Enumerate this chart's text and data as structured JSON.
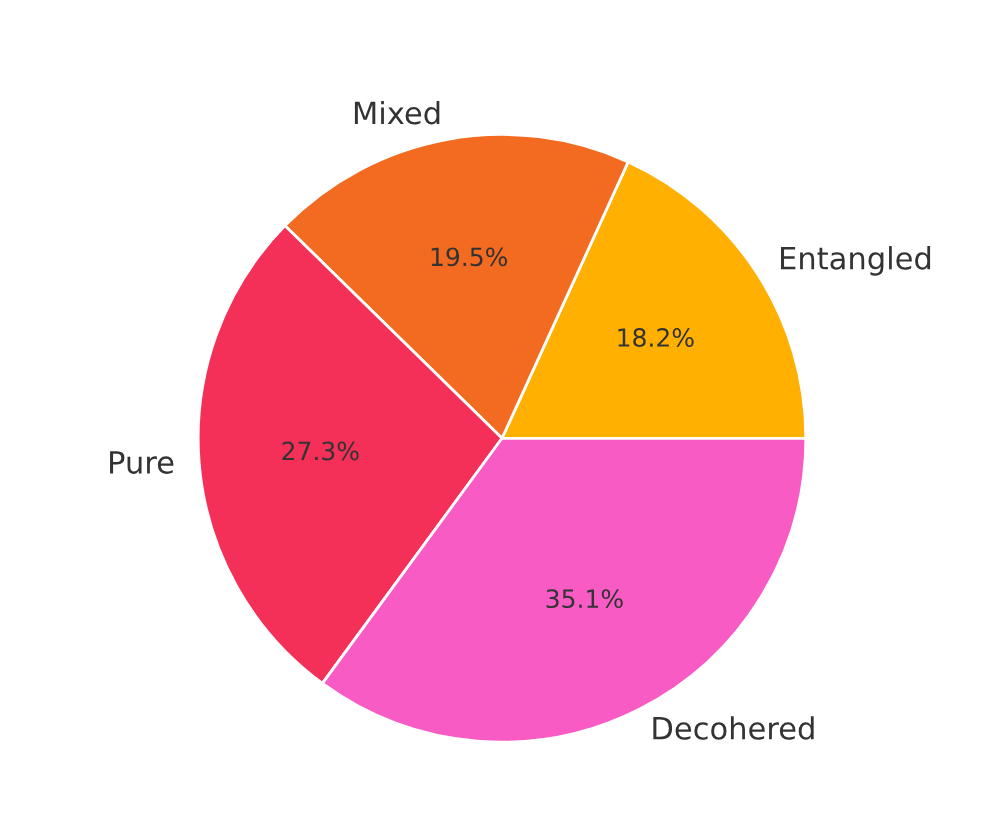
{
  "chart_data": {
    "type": "pie",
    "categories": [
      "Entangled",
      "Mixed",
      "Pure",
      "Decohered"
    ],
    "values": [
      18.2,
      19.5,
      27.3,
      35.1
    ],
    "value_labels": [
      "18.2%",
      "19.5%",
      "27.3%",
      "35.1%"
    ],
    "colors": [
      "#ffb000",
      "#f26b21",
      "#f53058",
      "#f95bc4"
    ]
  }
}
